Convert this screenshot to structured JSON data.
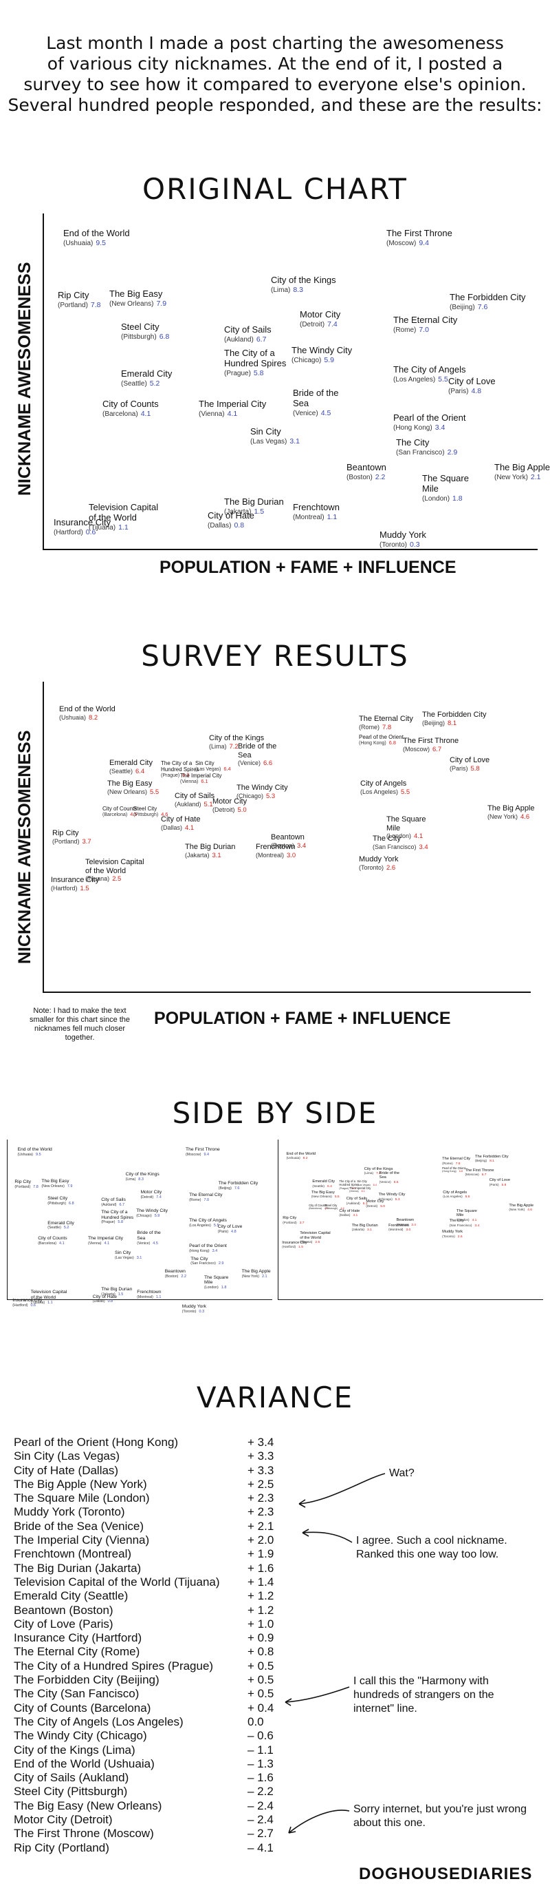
{
  "intro": [
    "Last month I made a post charting the awesomeness",
    "of various city nicknames. At the end of it, I posted a",
    "survey to see how it compared to everyone else's opinion.",
    "Several hundred people responded, and these are the results:"
  ],
  "colors": {
    "score_original": "#3a49b5",
    "score_survey": "#d9211c",
    "axis": "#111111"
  },
  "chart_data": [
    {
      "type": "scatter",
      "title": "ORIGINAL CHART",
      "ylabel": "NICKNAME AWESOMENESS",
      "xlabel": "POPULATION + FAME + INFLUENCE",
      "score_color": "#3a49b5",
      "points": [
        {
          "name": "End of the World",
          "place": "(Ushuaia)",
          "score": "9.5"
        },
        {
          "name": "The First Throne",
          "place": "(Moscow)",
          "score": "9.4"
        },
        {
          "name": "City of the Kings",
          "place": "(Lima)",
          "score": "8.3"
        },
        {
          "name": "Rip City",
          "place": "(Portland)",
          "score": "7.8"
        },
        {
          "name": "The Big Easy",
          "place": "(New Orleans)",
          "score": "7.9"
        },
        {
          "name": "The Forbidden City",
          "place": "(Beijing)",
          "score": "7.6"
        },
        {
          "name": "Motor City",
          "place": "(Detroit)",
          "score": "7.4"
        },
        {
          "name": "The Eternal City",
          "place": "(Rome)",
          "score": "7.0"
        },
        {
          "name": "Steel City",
          "place": "(Pittsburgh)",
          "score": "6.8"
        },
        {
          "name": "City of Sails",
          "place": "(Aukland)",
          "score": "6.7"
        },
        {
          "name": "The City of a Hundred Spires",
          "place": "(Prague)",
          "score": "5.8"
        },
        {
          "name": "The Windy City",
          "place": "(Chicago)",
          "score": "5.9"
        },
        {
          "name": "Emerald City",
          "place": "(Seattle)",
          "score": "5.2"
        },
        {
          "name": "The City of Angels",
          "place": "(Los Angeles)",
          "score": "5.5"
        },
        {
          "name": "City of Love",
          "place": "(Paris)",
          "score": "4.8"
        },
        {
          "name": "Bride of the Sea",
          "place": "(Venice)",
          "score": "4.5"
        },
        {
          "name": "City of Counts",
          "place": "(Barcelona)",
          "score": "4.1"
        },
        {
          "name": "The Imperial City",
          "place": "(Vienna)",
          "score": "4.1"
        },
        {
          "name": "Pearl of the Orient",
          "place": "(Hong Kong)",
          "score": "3.4"
        },
        {
          "name": "Sin City",
          "place": "(Las Vegas)",
          "score": "3.1"
        },
        {
          "name": "The City",
          "place": "(San Francisco)",
          "score": "2.9"
        },
        {
          "name": "Beantown",
          "place": "(Boston)",
          "score": "2.2"
        },
        {
          "name": "The Big Apple",
          "place": "(New York)",
          "score": "2.1"
        },
        {
          "name": "The Square Mile",
          "place": "(London)",
          "score": "1.8"
        },
        {
          "name": "The Big Durian",
          "place": "(Jakarta)",
          "score": "1.5"
        },
        {
          "name": "Television Capital of the World",
          "place": "(Tijuana)",
          "score": "1.1"
        },
        {
          "name": "City of Hate",
          "place": "(Dallas)",
          "score": "0.8"
        },
        {
          "name": "Frenchtown",
          "place": "(Montreal)",
          "score": "1.1"
        },
        {
          "name": "Insurance City",
          "place": "(Hartford)",
          "score": "0.6"
        },
        {
          "name": "Muddy York",
          "place": "(Toronto)",
          "score": "0.3"
        }
      ]
    },
    {
      "type": "scatter",
      "title": "SURVEY RESULTS",
      "ylabel": "NICKNAME AWESOMENESS",
      "xlabel": "POPULATION + FAME + INFLUENCE",
      "note": "Note: I had to make the text smaller for this chart since the nicknames fell much closer together.",
      "score_color": "#d9211c",
      "points": [
        {
          "name": "End of the World",
          "place": "(Ushuaia)",
          "score": "8.2"
        },
        {
          "name": "The Forbidden City",
          "place": "(Beijing)",
          "score": "8.1"
        },
        {
          "name": "The Eternal City",
          "place": "(Rome)",
          "score": "7.8"
        },
        {
          "name": "City of the Kings",
          "place": "(Lima)",
          "score": "7.2"
        },
        {
          "name": "Pearl of the Orient",
          "place": "(Hong Kong)",
          "score": "6.8"
        },
        {
          "name": "The First Throne",
          "place": "(Moscow)",
          "score": "6.7"
        },
        {
          "name": "Bride of the Sea",
          "place": "(Venice)",
          "score": "6.6"
        },
        {
          "name": "Emerald City",
          "place": "(Seattle)",
          "score": "6.4"
        },
        {
          "name": "The City of a Hundred Spires",
          "place": "(Prague)",
          "score": "6.3"
        },
        {
          "name": "Sin City",
          "place": "(Las Vegas)",
          "score": "6.4"
        },
        {
          "name": "The Imperial City",
          "place": "(Vienna)",
          "score": "6.1"
        },
        {
          "name": "City of Love",
          "place": "(Paris)",
          "score": "5.8"
        },
        {
          "name": "The Big Easy",
          "place": "(New Orleans)",
          "score": "5.5"
        },
        {
          "name": "City of Angels",
          "place": "(Los Angeles)",
          "score": "5.5"
        },
        {
          "name": "The Windy City",
          "place": "(Chicago)",
          "score": "5.3"
        },
        {
          "name": "City of Sails",
          "place": "(Aukland)",
          "score": "5.1"
        },
        {
          "name": "Motor City",
          "place": "(Detroit)",
          "score": "5.0"
        },
        {
          "name": "City of Counts",
          "place": "(Barcelona)",
          "score": "4.5"
        },
        {
          "name": "Steel City",
          "place": "(Pittsburgh)",
          "score": "4.6"
        },
        {
          "name": "The Big Apple",
          "place": "(New York)",
          "score": "4.6"
        },
        {
          "name": "City of Hate",
          "place": "(Dallas)",
          "score": "4.1"
        },
        {
          "name": "The Square Mile",
          "place": "(London)",
          "score": "4.1"
        },
        {
          "name": "Rip City",
          "place": "(Portland)",
          "score": "3.7"
        },
        {
          "name": "Beantown",
          "place": "(Boston)",
          "score": "3.4"
        },
        {
          "name": "The City",
          "place": "(San Francisco)",
          "score": "3.4"
        },
        {
          "name": "The Big Durian",
          "place": "(Jakarta)",
          "score": "3.1"
        },
        {
          "name": "Frenchtown",
          "place": "(Montreal)",
          "score": "3.0"
        },
        {
          "name": "Muddy York",
          "place": "(Toronto)",
          "score": "2.6"
        },
        {
          "name": "Television Capital of the World",
          "place": "(Tijuana)",
          "score": "2.5"
        },
        {
          "name": "Insurance City",
          "place": "(Hartford)",
          "score": "1.5"
        }
      ]
    },
    {
      "type": "table",
      "title": "VARIANCE",
      "rows": [
        {
          "label": "Pearl of the Orient (Hong Kong)",
          "value": "+ 3.4"
        },
        {
          "label": "Sin City (Las Vegas)",
          "value": "+ 3.3"
        },
        {
          "label": "City of Hate (Dallas)",
          "value": "+ 3.3"
        },
        {
          "label": "The Big Apple (New York)",
          "value": "+ 2.5"
        },
        {
          "label": "The Square Mile (London)",
          "value": "+ 2.3"
        },
        {
          "label": "Muddy York (Toronto)",
          "value": "+ 2.3"
        },
        {
          "label": "Bride of the  Sea (Venice)",
          "value": "+ 2.1"
        },
        {
          "label": "The Imperial City (Vienna)",
          "value": "+ 2.0"
        },
        {
          "label": "Frenchtown (Montreal)",
          "value": "+ 1.9"
        },
        {
          "label": "The Big Durian (Jakarta)",
          "value": "+ 1.6"
        },
        {
          "label": "Television Capital of the World (Tijuana)",
          "value": "+ 1.4"
        },
        {
          "label": "Emerald City (Seattle)",
          "value": "+ 1.2"
        },
        {
          "label": "Beantown (Boston)",
          "value": "+ 1.2"
        },
        {
          "label": "City of Love (Paris)",
          "value": "+ 1.0"
        },
        {
          "label": "Insurance City  (Hartford)",
          "value": "+ 0.9"
        },
        {
          "label": "The Eternal City (Rome)",
          "value": "+ 0.8"
        },
        {
          "label": "The City of a  Hundred Spires (Prague)",
          "value": "+ 0.5"
        },
        {
          "label": "The Forbidden City (Beijing)",
          "value": "+ 0.5"
        },
        {
          "label": "The City (San Fancisco)",
          "value": "+ 0.5"
        },
        {
          "label": "City of Counts (Barcelona)",
          "value": "+ 0.4"
        },
        {
          "label": "The City of Angels (Los Angeles)",
          "value": "0.0"
        },
        {
          "label": "The Windy City (Chicago)",
          "value": "– 0.6"
        },
        {
          "label": "City of the Kings (Lima)",
          "value": "– 1.1"
        },
        {
          "label": "End of the World (Ushuaia)",
          "value": "– 1.3"
        },
        {
          "label": "City of Sails (Aukland)",
          "value": "– 1.6"
        },
        {
          "label": "Steel City (Pittsburgh)",
          "value": "– 2.2"
        },
        {
          "label": "The Big Easy (New Orleans)",
          "value": "– 2.4"
        },
        {
          "label": "Motor City (Detroit)",
          "value": "– 2.4"
        },
        {
          "label": "The First Throne (Moscow)",
          "value": "– 2.7"
        },
        {
          "label": "Rip City (Portland)",
          "value": "– 4.1"
        }
      ]
    }
  ],
  "side_by_side": {
    "title": "SIDE BY SIDE"
  },
  "annotations": [
    "Wat?",
    "I agree. Such a cool nickname. Ranked this one way too low.",
    "I call this the \"Harmony with hundreds of strangers on the internet\" line.",
    "Sorry internet, but you're just wrong about this one."
  ],
  "credit": "DOGHOUSEDIARIES"
}
